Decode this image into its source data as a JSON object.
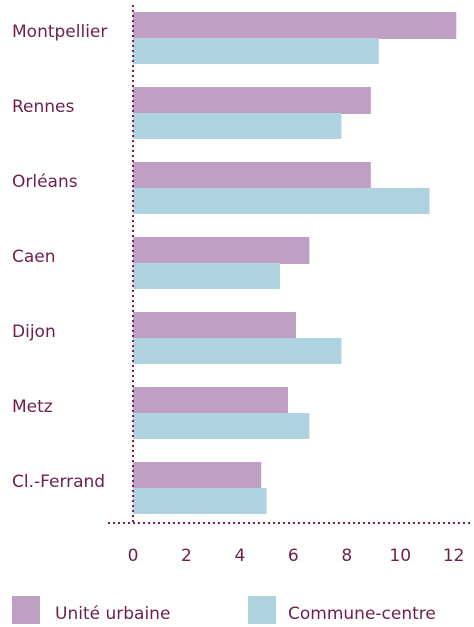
{
  "chart_data": {
    "type": "bar",
    "orientation": "horizontal",
    "categories": [
      "Montpellier",
      "Rennes",
      "Orléans",
      "Caen",
      "Dijon",
      "Metz",
      "Cl.-Ferrand"
    ],
    "series": [
      {
        "name": "Unité urbaine",
        "color": "#bf9fc4",
        "values": [
          12.1,
          8.9,
          8.9,
          6.6,
          6.1,
          5.8,
          4.8
        ]
      },
      {
        "name": "Commune-centre",
        "color": "#aed2df",
        "values": [
          9.2,
          7.8,
          11.1,
          5.5,
          7.8,
          6.6,
          5.0
        ]
      }
    ],
    "xlim": [
      0,
      12.5
    ],
    "xticks": [
      0,
      2,
      4,
      6,
      8,
      10,
      12
    ],
    "axis_color": "#7a1f4f"
  }
}
